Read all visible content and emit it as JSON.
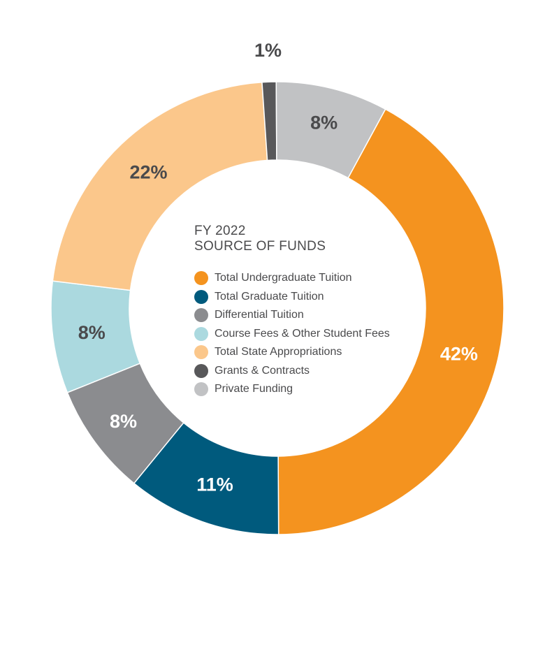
{
  "chart_data": {
    "type": "pie",
    "variant": "donut",
    "title": [
      "FY 2022",
      "SOURCE OF FUNDS"
    ],
    "slices": [
      {
        "name": "Total Undergraduate Tuition",
        "value": 42,
        "label": "42%",
        "color": "#f4931f",
        "label_color": "#ffffff"
      },
      {
        "name": "Total Graduate Tuition",
        "value": 11,
        "label": "11%",
        "color": "#005a7d",
        "label_color": "#ffffff"
      },
      {
        "name": "Differential Tuition",
        "value": 8,
        "label": "8%",
        "color": "#8b8c8f",
        "label_color": "#ffffff"
      },
      {
        "name": "Course Fees & Other Student Fees",
        "value": 8,
        "label": "8%",
        "color": "#abd9df",
        "label_color": "#4a4a4c"
      },
      {
        "name": "Total State Appropriations",
        "value": 22,
        "label": "22%",
        "color": "#fbc78b",
        "label_color": "#4a4a4c"
      },
      {
        "name": "Grants & Contracts",
        "value": 1,
        "label": "1%",
        "color": "#58585a",
        "label_color": "#4a4a4c"
      },
      {
        "name": "Private Funding",
        "value": 8,
        "label": "8%",
        "color": "#c1c2c4",
        "label_color": "#4a4a4c"
      }
    ],
    "legend_position": "center"
  }
}
